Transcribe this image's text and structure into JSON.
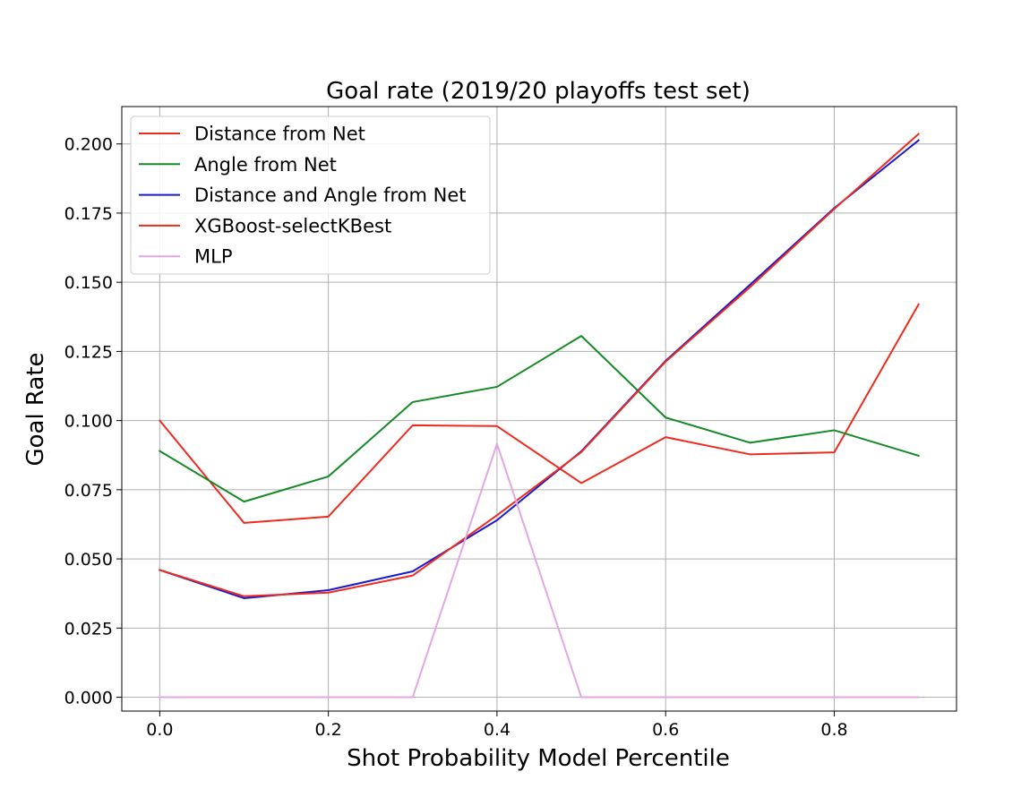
{
  "chart_data": {
    "type": "line",
    "title": "Goal rate (2019/20 playoffs test set)",
    "xlabel": "Shot Probability Model Percentile",
    "ylabel": "Goal Rate",
    "x": [
      0.0,
      0.1,
      0.2,
      0.3,
      0.4,
      0.5,
      0.6,
      0.7,
      0.8,
      0.9
    ],
    "xlim": [
      -0.045,
      0.945
    ],
    "ylim": [
      -0.005,
      0.2135
    ],
    "xticks": [
      0.0,
      0.2,
      0.4,
      0.6,
      0.8
    ],
    "xtick_labels": [
      "0.0",
      "0.2",
      "0.4",
      "0.6",
      "0.8"
    ],
    "yticks": [
      0.0,
      0.025,
      0.05,
      0.075,
      0.1,
      0.125,
      0.15,
      0.175,
      0.2
    ],
    "ytick_labels": [
      "0.000",
      "0.025",
      "0.050",
      "0.075",
      "0.100",
      "0.125",
      "0.150",
      "0.175",
      "0.200"
    ],
    "grid": true,
    "legend_position": "top-left",
    "series": [
      {
        "name": "Distance from Net",
        "color": "#ee2b1e",
        "values": [
          0.1,
          0.063,
          0.0653,
          0.0983,
          0.098,
          0.0774,
          0.094,
          0.0878,
          0.0885,
          0.142
        ]
      },
      {
        "name": "Angle from Net",
        "color": "#138a26",
        "values": [
          0.089,
          0.0707,
          0.0798,
          0.1067,
          0.1122,
          0.1306,
          0.1011,
          0.092,
          0.0965,
          0.0873
        ]
      },
      {
        "name": "Distance and Angle from Net",
        "color": "#1a1ad0",
        "values": [
          0.046,
          0.0358,
          0.0387,
          0.0455,
          0.064,
          0.0889,
          0.1216,
          0.1491,
          0.1768,
          0.2013
        ]
      },
      {
        "name": "XGBoost-selectKBest",
        "color": "#ee2b1e",
        "values": [
          0.046,
          0.0365,
          0.0378,
          0.044,
          0.0658,
          0.0886,
          0.1213,
          0.1482,
          0.1765,
          0.2036
        ]
      },
      {
        "name": "MLP",
        "color": "#e3a6e3",
        "values": [
          0.0,
          0.0,
          0.0,
          0.0,
          0.0916,
          0.0,
          0.0,
          0.0,
          0.0,
          0.0
        ]
      }
    ]
  }
}
